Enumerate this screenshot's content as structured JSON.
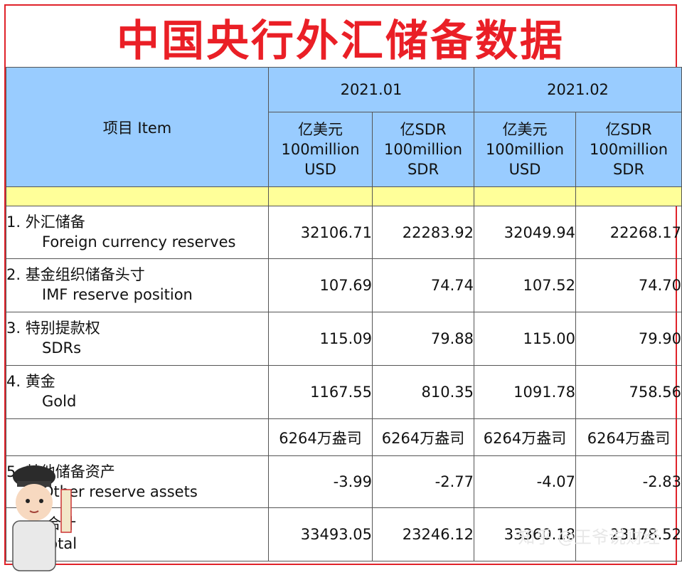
{
  "title": "中国央行外汇储备数据",
  "header": {
    "item": "项目  Item",
    "periods": [
      "2021.01",
      "2021.02"
    ],
    "units": [
      {
        "l1": "亿美元",
        "l2": "100million",
        "l3": "USD"
      },
      {
        "l1": "亿SDR",
        "l2": "100million",
        "l3": "SDR"
      },
      {
        "l1": "亿美元",
        "l2": "100million",
        "l3": "USD"
      },
      {
        "l1": "亿SDR",
        "l2": "100million",
        "l3": "SDR"
      }
    ]
  },
  "rows": [
    {
      "zh": "1.  外汇储备",
      "en": "Foreign currency reserves",
      "values": [
        "32106.71",
        "22283.92",
        "32049.94",
        "22268.17"
      ]
    },
    {
      "zh": "2.  基金组织储备头寸",
      "en": "IMF reserve position",
      "values": [
        "107.69",
        "74.74",
        "107.52",
        "74.70"
      ]
    },
    {
      "zh": "3.  特别提款权",
      "en": "SDRs",
      "values": [
        "115.09",
        "79.88",
        "115.00",
        "79.90"
      ]
    },
    {
      "zh": "4.  黄金",
      "en": "Gold",
      "values": [
        "1167.55",
        "810.35",
        "1091.78",
        "758.56"
      ]
    },
    {
      "zh": "",
      "en": "",
      "values": [
        "6264万盎司",
        "6264万盎司",
        "6264万盎司",
        "6264万盎司"
      ]
    },
    {
      "zh": "5.  其他储备资产",
      "en": "Other reserve assets",
      "values": [
        "-3.99",
        "-2.77",
        "-4.07",
        "-2.83"
      ]
    },
    {
      "zh": "合计",
      "en": "Total",
      "values": [
        "33493.05",
        "23246.12",
        "33360.18",
        "23178.52"
      ]
    }
  ],
  "watermark": "知乎 @王爷说财经"
}
